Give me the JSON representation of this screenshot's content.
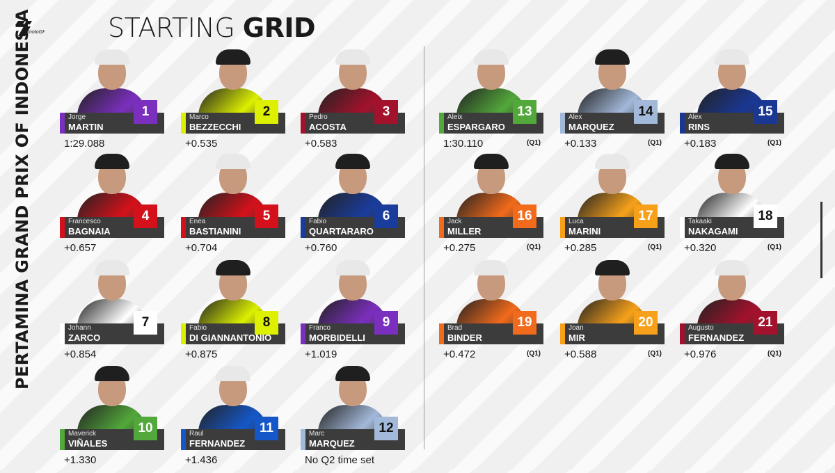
{
  "header": {
    "title_light": "STARTING ",
    "title_bold": "GRID",
    "event": "PERTAMINA GRAND PRIX OF INDONESIA",
    "logo_text": "motoGP"
  },
  "riders": [
    {
      "pos": "1",
      "first": "Jorge",
      "last": "MARTIN",
      "time": "1:29.088",
      "q1": "",
      "color": "#7b2fbe",
      "text": "#ffffff"
    },
    {
      "pos": "2",
      "first": "Marco",
      "last": "BEZZECCHI",
      "time": "+0.535",
      "q1": "",
      "color": "#dcf000",
      "text": "#111111"
    },
    {
      "pos": "3",
      "first": "Pedro",
      "last": "ACOSTA",
      "time": "+0.583",
      "q1": "",
      "color": "#a3122c",
      "text": "#ffffff"
    },
    {
      "pos": "4",
      "first": "Francesco",
      "last": "BAGNAIA",
      "time": "+0.657",
      "q1": "",
      "color": "#d4111b",
      "text": "#ffffff"
    },
    {
      "pos": "5",
      "first": "Enea",
      "last": "BASTIANINI",
      "time": "+0.704",
      "q1": "",
      "color": "#d4111b",
      "text": "#ffffff"
    },
    {
      "pos": "6",
      "first": "Fabio",
      "last": "QUARTARARO",
      "time": "+0.760",
      "q1": "",
      "color": "#1a3c9c",
      "text": "#ffffff"
    },
    {
      "pos": "7",
      "first": "Johann",
      "last": "ZARCO",
      "time": "+0.854",
      "q1": "",
      "color": "#ffffff",
      "text": "#111111"
    },
    {
      "pos": "8",
      "first": "Fabio",
      "last": "DI GIANNANTONIO",
      "time": "+0.875",
      "q1": "",
      "color": "#dcf000",
      "text": "#111111"
    },
    {
      "pos": "9",
      "first": "Franco",
      "last": "MORBIDELLI",
      "time": "+1.019",
      "q1": "",
      "color": "#7b2fbe",
      "text": "#ffffff"
    },
    {
      "pos": "10",
      "first": "Maverick",
      "last": "VIÑALES",
      "time": "+1.330",
      "q1": "",
      "color": "#52a83a",
      "text": "#ffffff"
    },
    {
      "pos": "11",
      "first": "Raul",
      "last": "FERNANDEZ",
      "time": "+1.436",
      "q1": "",
      "color": "#1557c8",
      "text": "#ffffff"
    },
    {
      "pos": "12",
      "first": "Marc",
      "last": "MARQUEZ",
      "time": "No Q2 time set",
      "q1": "",
      "color": "#a3b9da",
      "text": "#111111"
    },
    {
      "pos": "13",
      "first": "Aleix",
      "last": "ESPARGARO",
      "time": "1:30.110",
      "q1": "(Q1)",
      "color": "#52a83a",
      "text": "#ffffff"
    },
    {
      "pos": "14",
      "first": "Alex",
      "last": "MARQUEZ",
      "time": "+0.133",
      "q1": "(Q1)",
      "color": "#a3b9da",
      "text": "#111111"
    },
    {
      "pos": "15",
      "first": "Alex",
      "last": "RINS",
      "time": "+0.183",
      "q1": "(Q1)",
      "color": "#1a3793",
      "text": "#ffffff"
    },
    {
      "pos": "16",
      "first": "Jack",
      "last": "MILLER",
      "time": "+0.275",
      "q1": "(Q1)",
      "color": "#f26a1b",
      "text": "#ffffff"
    },
    {
      "pos": "17",
      "first": "Luca",
      "last": "MARINI",
      "time": "+0.285",
      "q1": "(Q1)",
      "color": "#f7a11a",
      "text": "#ffffff"
    },
    {
      "pos": "18",
      "first": "Takaaki",
      "last": "NAKAGAMI",
      "time": "+0.320",
      "q1": "(Q1)",
      "color": "#ffffff",
      "text": "#111111"
    },
    {
      "pos": "19",
      "first": "Brad",
      "last": "BINDER",
      "time": "+0.472",
      "q1": "(Q1)",
      "color": "#f26a1b",
      "text": "#ffffff"
    },
    {
      "pos": "20",
      "first": "Joan",
      "last": "MIR",
      "time": "+0.588",
      "q1": "(Q1)",
      "color": "#f7a11a",
      "text": "#ffffff"
    },
    {
      "pos": "21",
      "first": "Augusto",
      "last": "FERNANDEZ",
      "time": "+0.976",
      "q1": "(Q1)",
      "color": "#a3122c",
      "text": "#ffffff"
    }
  ]
}
